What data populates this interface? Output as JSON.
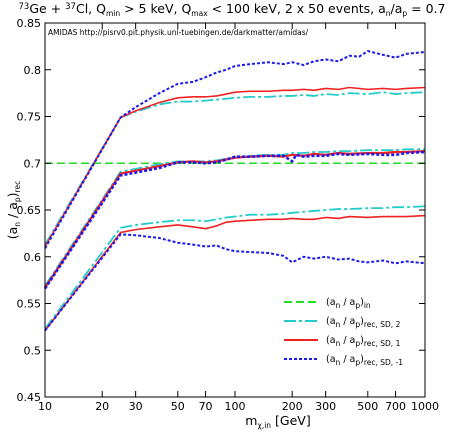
{
  "chart_data": {
    "type": "line",
    "title": {
      "iso1": "73",
      "el1": "Ge + ",
      "iso2": "37",
      "el2": "Cl, Q",
      "qmin_sub": "min",
      "qmin_val": " > 5 keV, Q",
      "qmax_sub": "max",
      "rest": " < 100 keV, 2 x 50 events, a",
      "an_sub": "n",
      "slash": "/a",
      "ap_sub": "p",
      "ratio": " = 0.7"
    },
    "note": "AMIDAS   http://pisrv0.pit.physik.uni-tuebingen.de/darkmatter/amidas/",
    "xlabel": {
      "main": "m",
      "sub": "χ,in",
      "unit": " [GeV]"
    },
    "ylabel": {
      "open": "(a",
      "sub1": "n",
      "mid": " / a",
      "sub2": "p",
      "close": ")",
      "sub3": "rec"
    },
    "x_scale": "log",
    "xlim": [
      10,
      1000
    ],
    "ylim": [
      0.45,
      0.85
    ],
    "x_ticks": [
      10,
      20,
      30,
      50,
      70,
      100,
      200,
      300,
      500,
      700,
      1000
    ],
    "x_tick_labels": [
      "10",
      "20",
      "30",
      "50",
      "70",
      "100",
      "200",
      "300",
      "500",
      "700",
      "1000"
    ],
    "y_ticks": [
      0.45,
      0.5,
      0.55,
      0.6,
      0.65,
      0.7,
      0.75,
      0.8,
      0.85
    ],
    "y_tick_labels": [
      "0.45",
      "0.5",
      "0.55",
      "0.6",
      "0.65",
      "0.7",
      "0.75",
      "0.8",
      "0.85"
    ],
    "grid": false,
    "legend_position": "bottom-right",
    "legend": [
      {
        "main": "(a",
        "s1": "n",
        "mid": " / a",
        "s2": "p",
        "close": ")",
        "s3": "in"
      },
      {
        "main": "(a",
        "s1": "n",
        "mid": " / a",
        "s2": "p",
        "close": ")",
        "s3": "rec, SD, 2"
      },
      {
        "main": "(a",
        "s1": "n",
        "mid": " / a",
        "s2": "p",
        "close": ")",
        "s3": "rec, SD, 1"
      },
      {
        "main": "(a",
        "s1": "n",
        "mid": " / a",
        "s2": "p",
        "close": ")",
        "s3": "rec, SD, -1"
      }
    ],
    "series": [
      {
        "style": "input",
        "color": "#22dd22",
        "dash": "8,4",
        "width": 1.6,
        "x": [
          10,
          1000
        ],
        "y": [
          0.7,
          0.7
        ]
      },
      {
        "style": "sd2",
        "color": "#22cccc",
        "dash": "12,3,3,3",
        "width": 1.8,
        "x": [
          10,
          25,
          30,
          40,
          50,
          60,
          70,
          80,
          90,
          100,
          120,
          150,
          180,
          200,
          230,
          260,
          300,
          350,
          400,
          500,
          600,
          700,
          800,
          1000
        ],
        "y": [
          0.613,
          0.749,
          0.755,
          0.763,
          0.766,
          0.766,
          0.767,
          0.768,
          0.769,
          0.77,
          0.771,
          0.771,
          0.772,
          0.772,
          0.773,
          0.772,
          0.774,
          0.773,
          0.775,
          0.774,
          0.776,
          0.774,
          0.775,
          0.776
        ]
      },
      {
        "style": "sd2",
        "color": "#22cccc",
        "dash": "12,3,3,3",
        "width": 1.8,
        "x": [
          10,
          25,
          30,
          40,
          50,
          60,
          70,
          80,
          90,
          100,
          120,
          150,
          180,
          200,
          230,
          260,
          300,
          350,
          400,
          500,
          600,
          700,
          800,
          1000
        ],
        "y": [
          0.569,
          0.691,
          0.694,
          0.699,
          0.702,
          0.702,
          0.702,
          0.703,
          0.705,
          0.706,
          0.708,
          0.709,
          0.709,
          0.711,
          0.711,
          0.712,
          0.712,
          0.713,
          0.713,
          0.714,
          0.714,
          0.714,
          0.715,
          0.715
        ]
      },
      {
        "style": "sd2",
        "color": "#22cccc",
        "dash": "12,3,3,3",
        "width": 1.8,
        "x": [
          10,
          25,
          30,
          40,
          50,
          60,
          70,
          80,
          90,
          100,
          120,
          150,
          180,
          200,
          230,
          260,
          300,
          350,
          400,
          500,
          600,
          700,
          800,
          1000
        ],
        "y": [
          0.523,
          0.631,
          0.634,
          0.637,
          0.639,
          0.639,
          0.638,
          0.64,
          0.642,
          0.643,
          0.645,
          0.645,
          0.646,
          0.647,
          0.648,
          0.649,
          0.65,
          0.651,
          0.651,
          0.652,
          0.652,
          0.653,
          0.653,
          0.654
        ]
      },
      {
        "style": "sd1",
        "color": "#ee2222",
        "dash": "",
        "width": 1.6,
        "x": [
          10,
          25,
          30,
          40,
          50,
          60,
          70,
          80,
          90,
          100,
          120,
          150,
          180,
          200,
          230,
          260,
          300,
          350,
          400,
          500,
          600,
          700,
          800,
          1000
        ],
        "y": [
          0.611,
          0.749,
          0.756,
          0.765,
          0.77,
          0.771,
          0.771,
          0.772,
          0.774,
          0.776,
          0.777,
          0.777,
          0.778,
          0.778,
          0.779,
          0.778,
          0.78,
          0.779,
          0.781,
          0.779,
          0.78,
          0.779,
          0.78,
          0.781
        ]
      },
      {
        "style": "sd1",
        "color": "#ee2222",
        "dash": "",
        "width": 2.2,
        "x": [
          10,
          25,
          30,
          40,
          50,
          60,
          70,
          80,
          90,
          100,
          120,
          150,
          180,
          200,
          230,
          260,
          300,
          350,
          400,
          500,
          600,
          700,
          800,
          1000
        ],
        "y": [
          0.567,
          0.689,
          0.692,
          0.697,
          0.701,
          0.702,
          0.701,
          0.702,
          0.704,
          0.706,
          0.707,
          0.708,
          0.707,
          0.709,
          0.708,
          0.71,
          0.709,
          0.711,
          0.71,
          0.711,
          0.711,
          0.712,
          0.712,
          0.713
        ]
      },
      {
        "style": "sd1",
        "color": "#ee2222",
        "dash": "",
        "width": 1.6,
        "x": [
          10,
          25,
          30,
          40,
          50,
          60,
          70,
          80,
          90,
          100,
          120,
          150,
          180,
          200,
          230,
          260,
          300,
          350,
          400,
          500,
          600,
          700,
          800,
          1000
        ],
        "y": [
          0.521,
          0.626,
          0.629,
          0.632,
          0.634,
          0.632,
          0.63,
          0.633,
          0.637,
          0.638,
          0.639,
          0.64,
          0.64,
          0.641,
          0.64,
          0.64,
          0.642,
          0.641,
          0.643,
          0.642,
          0.643,
          0.643,
          0.643,
          0.644
        ]
      },
      {
        "style": "sdm1",
        "color": "#1a1aee",
        "dash": "3,2",
        "width": 2.0,
        "x": [
          10,
          25,
          30,
          40,
          50,
          60,
          70,
          80,
          90,
          100,
          120,
          150,
          180,
          200,
          230,
          260,
          300,
          350,
          400,
          450,
          500,
          600,
          700,
          800,
          1000
        ],
        "y": [
          0.609,
          0.749,
          0.76,
          0.775,
          0.785,
          0.787,
          0.792,
          0.797,
          0.8,
          0.804,
          0.806,
          0.808,
          0.806,
          0.808,
          0.805,
          0.809,
          0.811,
          0.809,
          0.815,
          0.814,
          0.82,
          0.816,
          0.813,
          0.817,
          0.819
        ]
      },
      {
        "style": "sdm1",
        "color": "#1a1aee",
        "dash": "3,2",
        "width": 2.6,
        "x": [
          10,
          25,
          30,
          40,
          50,
          60,
          70,
          80,
          90,
          100,
          120,
          150,
          180,
          200,
          210,
          230,
          260,
          300,
          350,
          400,
          500,
          600,
          700,
          800,
          1000
        ],
        "y": [
          0.566,
          0.687,
          0.69,
          0.695,
          0.701,
          0.701,
          0.7,
          0.701,
          0.704,
          0.707,
          0.707,
          0.708,
          0.708,
          0.702,
          0.709,
          0.707,
          0.708,
          0.708,
          0.71,
          0.709,
          0.71,
          0.709,
          0.709,
          0.711,
          0.712
        ]
      },
      {
        "style": "sdm1",
        "color": "#1a1aee",
        "dash": "3,2",
        "width": 2.0,
        "x": [
          10,
          25,
          30,
          40,
          50,
          60,
          70,
          80,
          90,
          100,
          120,
          150,
          180,
          200,
          230,
          260,
          300,
          350,
          400,
          450,
          500,
          600,
          700,
          800,
          1000
        ],
        "y": [
          0.521,
          0.624,
          0.623,
          0.62,
          0.615,
          0.613,
          0.611,
          0.612,
          0.608,
          0.606,
          0.605,
          0.604,
          0.601,
          0.594,
          0.6,
          0.598,
          0.6,
          0.597,
          0.598,
          0.595,
          0.594,
          0.596,
          0.593,
          0.595,
          0.593
        ]
      }
    ]
  }
}
